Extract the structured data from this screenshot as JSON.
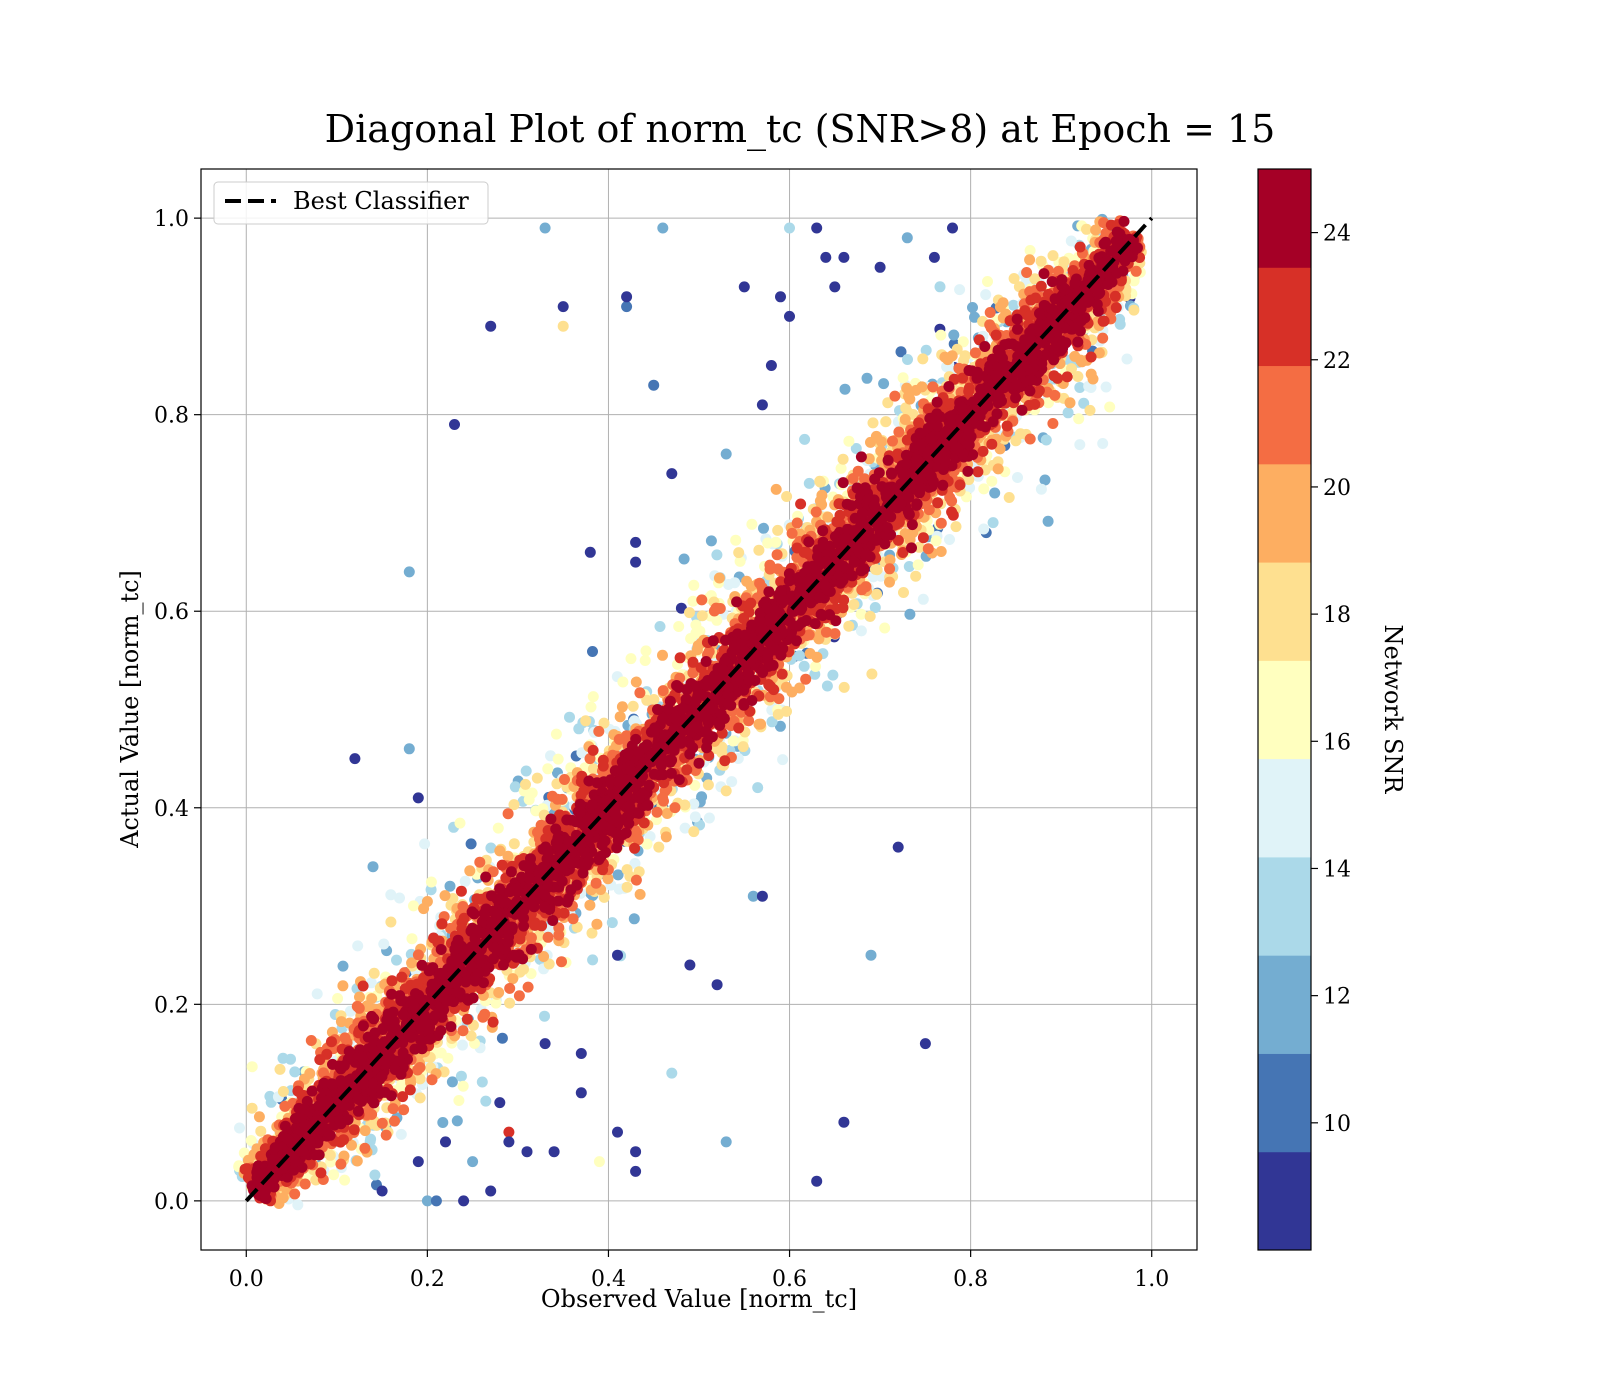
{
  "chart_data": {
    "type": "scatter",
    "title": "Diagonal Plot of norm_tc (SNR>8) at Epoch = 15",
    "xlabel": "Observed Value [norm_tc]",
    "ylabel": "Actual Value [norm_tc]",
    "xlim": [
      -0.05,
      1.05
    ],
    "ylim": [
      -0.05,
      1.05
    ],
    "xticks": [
      "0.0",
      "0.2",
      "0.4",
      "0.6",
      "0.8",
      "1.0"
    ],
    "yticks": [
      "0.0",
      "0.2",
      "0.4",
      "0.6",
      "0.8",
      "1.0"
    ],
    "grid": true,
    "legend": {
      "placement": "top-left",
      "entries": [
        {
          "label": "Best Classifier",
          "style": "dashed",
          "color": "#000000"
        }
      ]
    },
    "reference_line": {
      "label": "Best Classifier",
      "x": [
        0,
        1
      ],
      "y": [
        0,
        1
      ]
    },
    "colorbar": {
      "label": "Network SNR",
      "range": [
        8,
        25
      ],
      "ticks": [
        "10",
        "12",
        "14",
        "16",
        "18",
        "20",
        "22",
        "24"
      ],
      "colors": [
        "#313695",
        "#4575b4",
        "#74add1",
        "#abd9e9",
        "#e0f3f8",
        "#ffffbf",
        "#fee090",
        "#fdae61",
        "#f46d43",
        "#d73027",
        "#a50026"
      ]
    },
    "cluster": {
      "description_points": "dense band of points along y = x",
      "count_estimate": 9000
    },
    "outliers": [
      [
        0.33,
        0.99,
        12
      ],
      [
        0.46,
        0.99,
        12
      ],
      [
        0.6,
        0.99,
        13
      ],
      [
        0.27,
        0.89,
        9
      ],
      [
        0.35,
        0.89,
        18
      ],
      [
        0.42,
        0.91,
        10
      ],
      [
        0.42,
        0.92,
        9
      ],
      [
        0.35,
        0.91,
        9
      ],
      [
        0.55,
        0.93,
        9
      ],
      [
        0.59,
        0.92,
        9
      ],
      [
        0.6,
        0.9,
        9
      ],
      [
        0.64,
        0.96,
        9
      ],
      [
        0.65,
        0.93,
        9
      ],
      [
        0.7,
        0.95,
        9
      ],
      [
        0.73,
        0.98,
        12
      ],
      [
        0.63,
        0.99,
        9
      ],
      [
        0.66,
        0.96,
        9
      ],
      [
        0.76,
        0.96,
        9
      ],
      [
        0.78,
        0.99,
        9
      ],
      [
        0.23,
        0.79,
        9
      ],
      [
        0.45,
        0.83,
        10
      ],
      [
        0.58,
        0.85,
        9
      ],
      [
        0.57,
        0.81,
        9
      ],
      [
        0.47,
        0.74,
        9
      ],
      [
        0.53,
        0.76,
        12
      ],
      [
        0.38,
        0.66,
        9
      ],
      [
        0.43,
        0.67,
        9
      ],
      [
        0.43,
        0.65,
        9
      ],
      [
        0.18,
        0.64,
        12
      ],
      [
        0.12,
        0.45,
        9
      ],
      [
        0.18,
        0.46,
        12
      ],
      [
        0.19,
        0.41,
        9
      ],
      [
        0.14,
        0.34,
        12
      ],
      [
        0.72,
        0.36,
        9
      ],
      [
        0.56,
        0.31,
        12
      ],
      [
        0.57,
        0.31,
        9
      ],
      [
        0.69,
        0.25,
        12
      ],
      [
        0.49,
        0.24,
        9
      ],
      [
        0.52,
        0.22,
        9
      ],
      [
        0.41,
        0.25,
        9
      ],
      [
        0.75,
        0.16,
        9
      ],
      [
        0.33,
        0.16,
        9
      ],
      [
        0.37,
        0.15,
        9
      ],
      [
        0.47,
        0.13,
        14
      ],
      [
        0.37,
        0.11,
        9
      ],
      [
        0.28,
        0.1,
        9
      ],
      [
        0.29,
        0.07,
        22
      ],
      [
        0.66,
        0.08,
        9
      ],
      [
        0.41,
        0.07,
        9
      ],
      [
        0.43,
        0.05,
        9
      ],
      [
        0.53,
        0.06,
        12
      ],
      [
        0.43,
        0.03,
        9
      ],
      [
        0.39,
        0.04,
        16
      ],
      [
        0.63,
        0.02,
        9
      ],
      [
        0.2,
        0.0,
        12
      ],
      [
        0.21,
        0.0,
        10
      ],
      [
        0.24,
        0.0,
        9
      ],
      [
        0.27,
        0.01,
        9
      ],
      [
        0.31,
        0.05,
        9
      ],
      [
        0.25,
        0.04,
        12
      ],
      [
        0.29,
        0.06,
        9
      ],
      [
        0.22,
        0.06,
        9
      ],
      [
        0.15,
        0.01,
        9
      ],
      [
        0.19,
        0.04,
        9
      ],
      [
        0.34,
        0.05,
        9
      ]
    ]
  }
}
